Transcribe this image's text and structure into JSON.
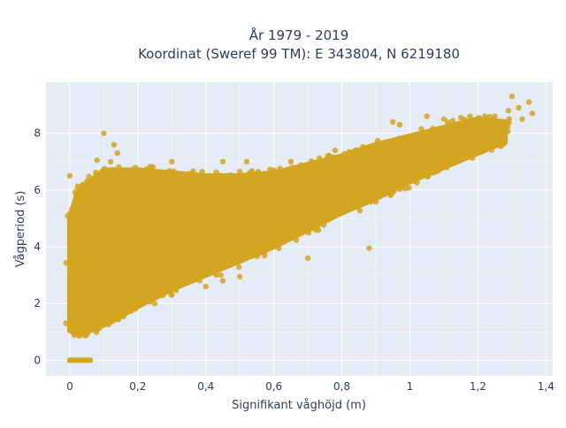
{
  "chart_data": {
    "type": "scatter",
    "title_line1": "År 1979 - 2019",
    "title_line2": "Koordinat (Sweref 99 TM): E 343804, N 6219180",
    "xlabel": "Signifikant våghöjd (m)",
    "ylabel": "Vågperiod (s)",
    "xlim": [
      -0.07,
      1.42
    ],
    "ylim": [
      -0.55,
      9.8
    ],
    "xticks": [
      0,
      0.2,
      0.4,
      0.6,
      0.8,
      1.0,
      1.2,
      1.4
    ],
    "xtick_labels": [
      "0",
      "0,2",
      "0,4",
      "0,6",
      "0,8",
      "1",
      "1,2",
      "1,4"
    ],
    "yticks": [
      0,
      2,
      4,
      6,
      8
    ],
    "ytick_labels": [
      "0",
      "2",
      "4",
      "6",
      "8"
    ],
    "grid": true,
    "series": [
      {
        "name": "",
        "color": "#d4a520",
        "dense_region_polygon": [
          [
            0.0,
            1.05
          ],
          [
            0.02,
            1.0
          ],
          [
            0.05,
            1.0
          ],
          [
            0.12,
            1.35
          ],
          [
            0.2,
            1.9
          ],
          [
            0.3,
            2.5
          ],
          [
            0.4,
            3.0
          ],
          [
            0.5,
            3.5
          ],
          [
            0.6,
            4.0
          ],
          [
            0.7,
            4.6
          ],
          [
            0.8,
            5.2
          ],
          [
            0.9,
            5.7
          ],
          [
            1.0,
            6.3
          ],
          [
            1.1,
            6.8
          ],
          [
            1.2,
            7.3
          ],
          [
            1.28,
            7.7
          ],
          [
            1.28,
            8.4
          ],
          [
            1.2,
            8.5
          ],
          [
            1.1,
            8.2
          ],
          [
            1.0,
            7.9
          ],
          [
            0.9,
            7.6
          ],
          [
            0.8,
            7.2
          ],
          [
            0.7,
            6.9
          ],
          [
            0.6,
            6.6
          ],
          [
            0.5,
            6.5
          ],
          [
            0.4,
            6.5
          ],
          [
            0.3,
            6.6
          ],
          [
            0.2,
            6.7
          ],
          [
            0.1,
            6.7
          ],
          [
            0.05,
            6.2
          ],
          [
            0.02,
            5.8
          ],
          [
            0.0,
            5.0
          ]
        ],
        "zero_points": [
          [
            0.0,
            0.0
          ],
          [
            0.01,
            0.0
          ],
          [
            0.02,
            0.0
          ],
          [
            0.03,
            0.0
          ],
          [
            0.04,
            0.0
          ],
          [
            0.05,
            0.0
          ],
          [
            0.06,
            0.0
          ]
        ],
        "outliers": [
          [
            1.3,
            9.3
          ],
          [
            1.35,
            9.1
          ],
          [
            1.32,
            8.9
          ],
          [
            1.29,
            8.8
          ],
          [
            1.36,
            8.7
          ],
          [
            1.25,
            8.6
          ],
          [
            1.22,
            8.6
          ],
          [
            1.33,
            8.5
          ],
          [
            0.1,
            8.0
          ],
          [
            0.14,
            7.3
          ],
          [
            0.13,
            7.6
          ],
          [
            0.12,
            7.0
          ],
          [
            0.08,
            7.05
          ],
          [
            0.3,
            7.0
          ],
          [
            0.45,
            7.0
          ],
          [
            0.52,
            7.0
          ],
          [
            0.78,
            7.4
          ],
          [
            0.85,
            7.1
          ],
          [
            0.95,
            8.4
          ],
          [
            0.97,
            8.3
          ],
          [
            0.88,
            3.95
          ],
          [
            0.4,
            2.6
          ],
          [
            0.45,
            2.8
          ],
          [
            0.7,
            3.6
          ],
          [
            0.5,
            2.95
          ],
          [
            0.0,
            6.5
          ],
          [
            0.01,
            1.55
          ],
          [
            0.0,
            2.3
          ],
          [
            0.0,
            3.3
          ],
          [
            1.05,
            8.6
          ],
          [
            1.1,
            8.5
          ],
          [
            1.15,
            8.55
          ],
          [
            0.6,
            6.7
          ],
          [
            0.65,
            7.0
          ],
          [
            0.3,
            2.3
          ],
          [
            0.25,
            2.0
          ]
        ],
        "point_count_note": ""
      }
    ]
  },
  "colors": {
    "plot_bg": "#e5ecf6",
    "grid": "#ffffff",
    "marker": "#d4a520",
    "text": "#2a3f5f"
  }
}
